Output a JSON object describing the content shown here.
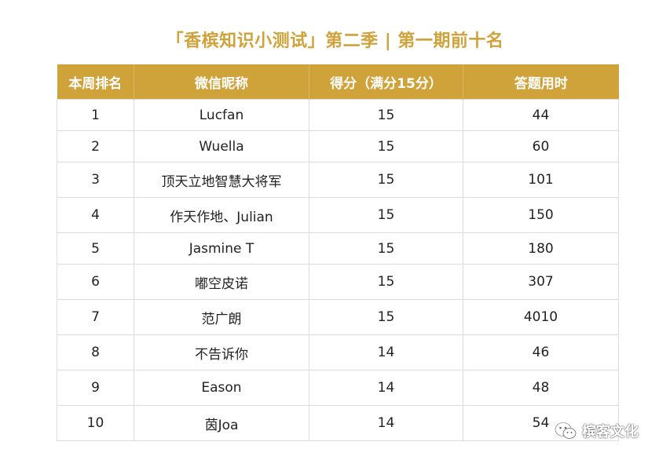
{
  "title": "「香槟知识小测试」第二季 | 第一期前十名",
  "table": {
    "headers": [
      "本周排名",
      "微信昵称",
      "得分（满分15分）",
      "答题用时"
    ],
    "rows": [
      {
        "rank": "1",
        "name": "Lucfan",
        "score": "15",
        "time": "44"
      },
      {
        "rank": "2",
        "name": "Wuella",
        "score": "15",
        "time": "60"
      },
      {
        "rank": "3",
        "name": "顶天立地智慧大将军",
        "score": "15",
        "time": "101"
      },
      {
        "rank": "4",
        "name": "作天作地、Julian",
        "score": "15",
        "time": "150"
      },
      {
        "rank": "5",
        "name": "Jasmine T",
        "score": "15",
        "time": "180"
      },
      {
        "rank": "6",
        "name": "嘟空皮诺",
        "score": "15",
        "time": "307"
      },
      {
        "rank": "7",
        "name": "范广朗",
        "score": "15",
        "time": "4010"
      },
      {
        "rank": "8",
        "name": "不告诉你",
        "score": "14",
        "time": "46"
      },
      {
        "rank": "9",
        "name": "Eason",
        "score": "14",
        "time": "48"
      },
      {
        "rank": "10",
        "name": "茵Joa",
        "score": "14",
        "time": "54"
      }
    ]
  },
  "watermark": {
    "icon": "wechat-icon",
    "text": "槟客文化"
  },
  "colors": {
    "accent": "#cfa23a",
    "header_text": "#ffffff",
    "grid": "#dcdcdc"
  }
}
